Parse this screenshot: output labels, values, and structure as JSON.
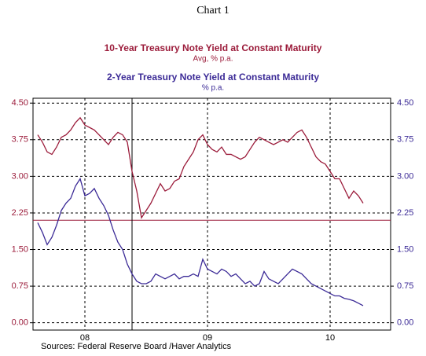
{
  "chart_data": {
    "type": "line",
    "title": "Chart 1",
    "categories": [
      null,
      null,
      null,
      null,
      null,
      null,
      null,
      null,
      null,
      null,
      "08",
      null,
      null,
      null,
      null,
      null,
      null,
      null,
      null,
      null,
      null,
      null,
      null,
      null,
      null,
      null,
      null,
      null,
      null,
      null,
      null,
      null,
      null,
      null,
      null,
      null,
      "09",
      null,
      null,
      null,
      null,
      null,
      null,
      null,
      null,
      null,
      null,
      null,
      null,
      null,
      null,
      null,
      null,
      null,
      null,
      null,
      null,
      null,
      null,
      null,
      null,
      null,
      "10",
      null,
      null,
      null,
      null,
      null,
      null,
      null
    ],
    "series": [
      {
        "name": "10-Year Treasury Note Yield at Constant Maturity",
        "unit": "Avg, % p.a.",
        "color": "#9b1b3a",
        "values": [
          3.85,
          3.7,
          3.5,
          3.45,
          3.6,
          3.8,
          3.85,
          3.95,
          4.1,
          4.2,
          4.05,
          4.0,
          3.95,
          3.85,
          3.75,
          3.65,
          3.8,
          3.9,
          3.85,
          3.7,
          3.1,
          2.7,
          2.15,
          2.3,
          2.45,
          2.65,
          2.85,
          2.7,
          2.75,
          2.9,
          2.95,
          3.2,
          3.35,
          3.5,
          3.75,
          3.85,
          3.65,
          3.55,
          3.5,
          3.6,
          3.45,
          3.45,
          3.4,
          3.35,
          3.4,
          3.55,
          3.7,
          3.8,
          3.75,
          3.7,
          3.65,
          3.7,
          3.75,
          3.7,
          3.8,
          3.9,
          3.95,
          3.8,
          3.6,
          3.4,
          3.3,
          3.25,
          3.1,
          2.95,
          2.95,
          2.75,
          2.55,
          2.7,
          2.6,
          2.45
        ]
      },
      {
        "name": "2-Year Treasury Note Yield at Constant Maturity",
        "unit": "% p.a.",
        "color": "#3b2a96",
        "axis": "y2",
        "values": [
          2.05,
          1.85,
          1.6,
          1.75,
          2.0,
          2.3,
          2.45,
          2.55,
          2.8,
          2.95,
          2.6,
          2.65,
          2.75,
          2.55,
          2.4,
          2.2,
          1.9,
          1.65,
          1.5,
          1.2,
          1.0,
          0.85,
          0.8,
          0.8,
          0.85,
          1.0,
          0.95,
          0.9,
          0.95,
          1.0,
          0.9,
          0.95,
          0.95,
          1.0,
          0.95,
          1.3,
          1.1,
          1.05,
          1.0,
          1.1,
          1.05,
          0.95,
          1.0,
          0.9,
          0.8,
          0.85,
          0.75,
          0.8,
          1.05,
          0.9,
          0.85,
          0.8,
          0.9,
          1.0,
          1.1,
          1.05,
          1.0,
          0.9,
          0.8,
          0.75,
          0.7,
          0.65,
          0.6,
          0.55,
          0.55,
          0.5,
          0.48,
          0.45,
          0.4,
          0.35
        ]
      }
    ],
    "ylim": [
      -0.15,
      4.6
    ],
    "yticks": [
      {
        "value": 0,
        "label": "0.00"
      },
      {
        "value": 0.75,
        "label": "0.75"
      },
      {
        "value": 1.5,
        "label": "1.50"
      },
      {
        "value": 2.25,
        "label": "2.25"
      },
      {
        "value": 3,
        "label": "3.00"
      },
      {
        "value": 3.75,
        "label": "3.75"
      },
      {
        "value": 4.5,
        "label": "4.50"
      }
    ],
    "y2lim": [
      -0.15,
      4.6
    ],
    "y2ticks": [
      {
        "value": 0,
        "label": "0.00"
      },
      {
        "value": 0.75,
        "label": "0.75"
      },
      {
        "value": 1.5,
        "label": "1.50"
      },
      {
        "value": 2.25,
        "label": "2.25"
      },
      {
        "value": 3,
        "label": "3.00"
      },
      {
        "value": 3.75,
        "label": "3.75"
      },
      {
        "value": 4.5,
        "label": "4.50"
      }
    ],
    "grid": true,
    "reference_line": 2.1,
    "marker_index": 20,
    "source": "Sources:  Federal Reserve Board /Haver Analytics"
  }
}
